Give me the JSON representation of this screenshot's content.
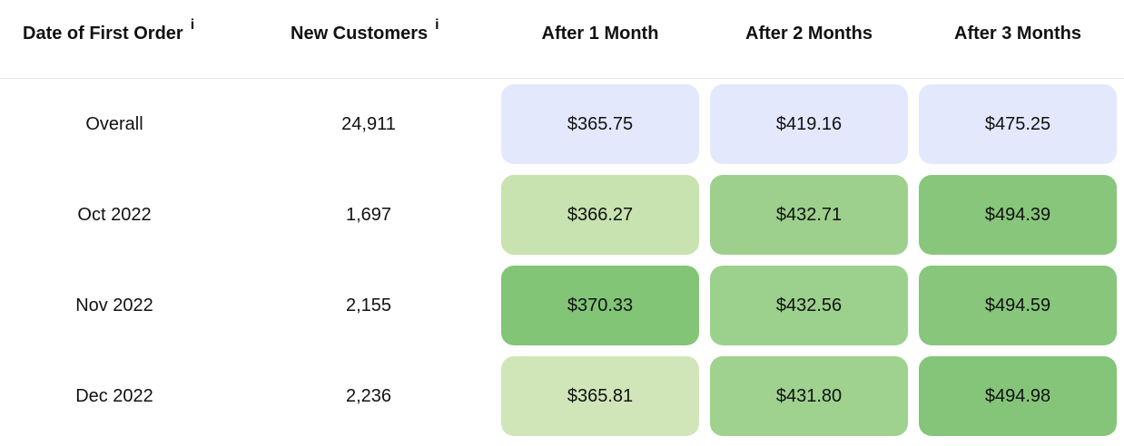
{
  "table": {
    "headers": [
      {
        "label": "Date of First Order",
        "info_icon": "i"
      },
      {
        "label": "New Customers",
        "info_icon": "i"
      },
      {
        "label": "After 1 Month"
      },
      {
        "label": "After 2 Months"
      },
      {
        "label": "After 3 Months"
      }
    ],
    "rows": [
      {
        "date": "Overall",
        "new_customers": "24,911",
        "values": [
          "$365.75",
          "$419.16",
          "$475.25"
        ],
        "colors": [
          "#e3e8fd",
          "#e3e8fd",
          "#e3e8fd"
        ]
      },
      {
        "date": "Oct 2022",
        "new_customers": "1,697",
        "values": [
          "$366.27",
          "$432.71",
          "$494.39"
        ],
        "colors": [
          "#c8e2b0",
          "#9dd08c",
          "#88c67b"
        ]
      },
      {
        "date": "Nov 2022",
        "new_customers": "2,155",
        "values": [
          "$370.33",
          "$432.56",
          "$494.59"
        ],
        "colors": [
          "#82c577",
          "#9cd08d",
          "#87c67b"
        ]
      },
      {
        "date": "Dec 2022",
        "new_customers": "2,236",
        "values": [
          "$365.81",
          "$431.80",
          "$494.98"
        ],
        "colors": [
          "#d0e6b8",
          "#9fd18f",
          "#85c579"
        ]
      }
    ]
  }
}
